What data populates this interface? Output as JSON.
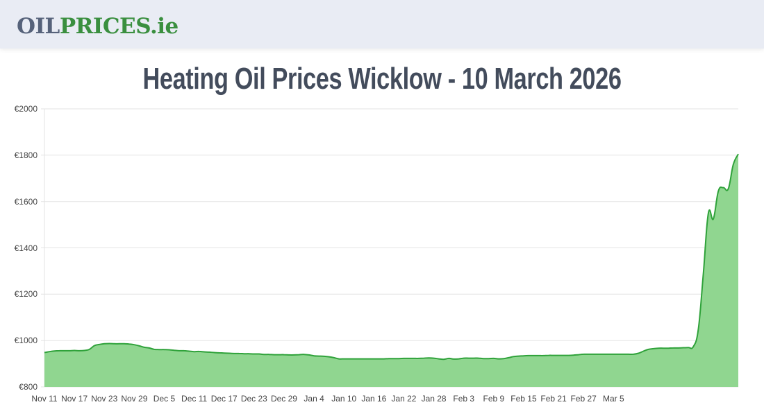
{
  "header": {
    "logo_part1": "OIL",
    "logo_part2": "PRICES.ie"
  },
  "page_title": "Heating Oil Prices Wicklow - 10 March 2026",
  "colors": {
    "header_bg": "#e9ecf4",
    "logo_dark": "#56627a",
    "logo_green": "#3a8f3f",
    "title": "#434c5c",
    "line": "#2fa23a",
    "fill": "#90d690",
    "grid": "#e3e3e3"
  },
  "chart_data": {
    "type": "area",
    "title": "Heating Oil Prices Wicklow - 10 March 2026",
    "xlabel": "",
    "ylabel": "",
    "ylim": [
      800,
      2000
    ],
    "y_ticks": [
      "€800",
      "€1000",
      "€1200",
      "€1400",
      "€1600",
      "€1800",
      "€2000"
    ],
    "y_tick_values": [
      800,
      1000,
      1200,
      1400,
      1600,
      1800,
      2000
    ],
    "x_ticks": [
      "Nov 11",
      "Nov 17",
      "Nov 23",
      "Nov 29",
      "Dec 5",
      "Dec 11",
      "Dec 17",
      "Dec 23",
      "Dec 29",
      "Jan 4",
      "Jan 10",
      "Jan 16",
      "Jan 22",
      "Jan 28",
      "Feb 3",
      "Feb 9",
      "Feb 15",
      "Feb 21",
      "Feb 27",
      "Mar 5"
    ],
    "grid": true,
    "legend": "none",
    "x_start": "Nov 11",
    "x_end": "Mar 10",
    "series": [
      {
        "name": "Heating Oil Price (Wicklow)",
        "values": [
          948,
          952,
          955,
          956,
          956,
          956,
          957,
          956,
          957,
          962,
          978,
          983,
          986,
          987,
          986,
          986,
          986,
          985,
          982,
          977,
          971,
          968,
          962,
          961,
          961,
          960,
          958,
          956,
          956,
          954,
          952,
          953,
          951,
          950,
          948,
          947,
          946,
          945,
          944,
          944,
          943,
          943,
          942,
          942,
          940,
          940,
          939,
          939,
          939,
          938,
          938,
          939,
          940,
          938,
          934,
          933,
          932,
          930,
          926,
          921,
          921,
          921,
          921,
          921,
          921,
          921,
          921,
          921,
          921,
          922,
          922,
          922,
          923,
          923,
          923,
          923,
          924,
          925,
          924,
          921,
          919,
          923,
          920,
          921,
          924,
          924,
          924,
          924,
          922,
          922,
          923,
          921,
          922,
          926,
          931,
          933,
          934,
          935,
          935,
          935,
          935,
          936,
          936,
          936,
          936,
          936,
          937,
          939,
          941,
          941,
          941,
          941,
          941,
          941,
          941,
          941,
          941,
          941,
          941,
          945,
          954,
          962,
          965,
          967,
          967,
          967,
          968,
          968,
          969,
          970,
          974,
          1050,
          1290,
          1550,
          1525,
          1645,
          1660,
          1655,
          1760,
          1805
        ]
      }
    ]
  }
}
